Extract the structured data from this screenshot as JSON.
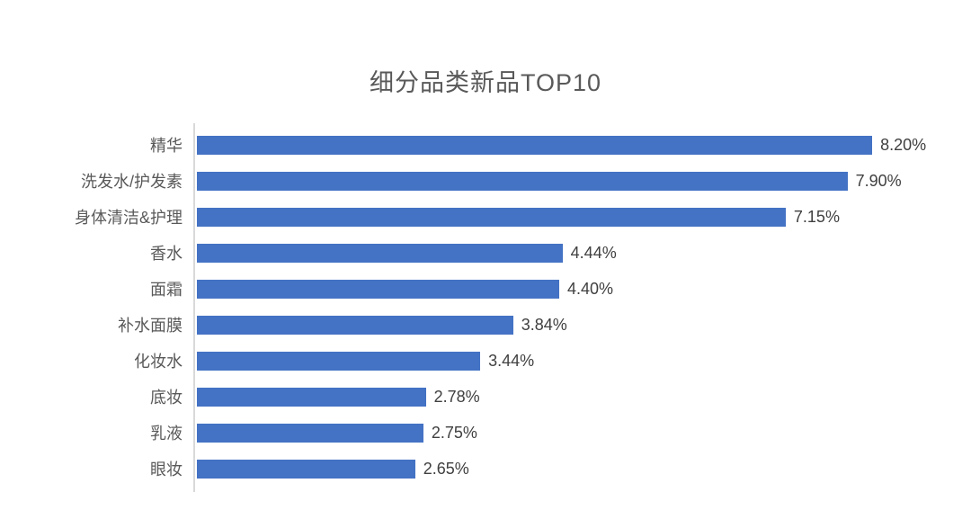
{
  "title": "细分品类新品TOP10",
  "colors": {
    "bar": "#4472C4",
    "axis": "#D9D9D9",
    "title_text": "#595959",
    "category_text": "#595959",
    "value_text": "#404040",
    "background": "#FFFFFF"
  },
  "chart_data": {
    "type": "bar",
    "orientation": "horizontal",
    "title": "细分品类新品TOP10",
    "categories": [
      "精华",
      "洗发水/护发素",
      "身体清洁&护理",
      "香水",
      "面霜",
      "补水面膜",
      "化妆水",
      "底妆",
      "乳液",
      "眼妆"
    ],
    "values": [
      8.2,
      7.9,
      7.15,
      4.44,
      4.4,
      3.84,
      3.44,
      2.78,
      2.75,
      2.65
    ],
    "value_labels": [
      "8.20%",
      "7.90%",
      "7.15%",
      "4.44%",
      "4.40%",
      "3.84%",
      "3.44%",
      "2.78%",
      "2.75%",
      "2.65%"
    ],
    "xlabel": "",
    "ylabel": "",
    "xlim": [
      0,
      9.4
    ],
    "grid": false,
    "legend": false,
    "data_labels": true
  }
}
